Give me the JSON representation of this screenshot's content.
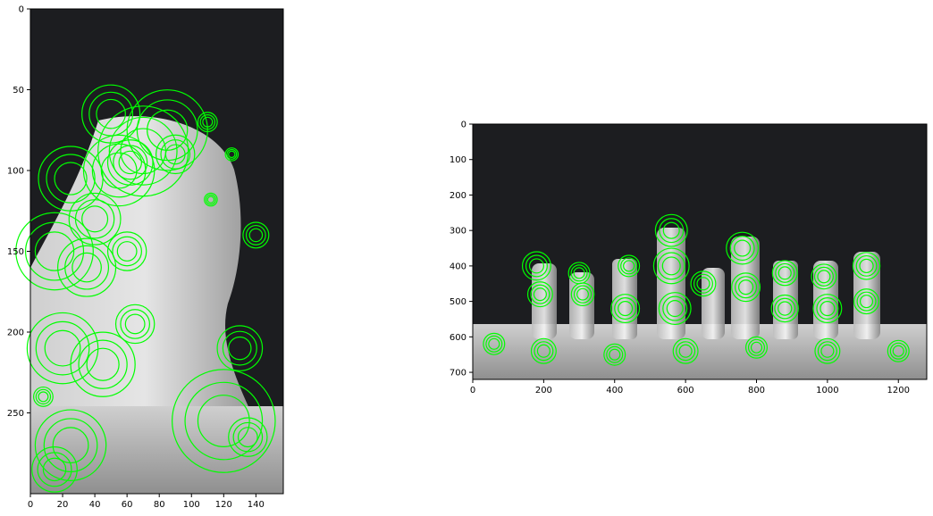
{
  "chart_data": [
    {
      "type": "image",
      "panel": "left",
      "description_of_content": "keypoints",
      "xlim": [
        0,
        157
      ],
      "ylim": [
        300,
        0
      ],
      "x_ticks": [
        0,
        20,
        40,
        60,
        80,
        100,
        120,
        140
      ],
      "y_ticks": [
        0,
        50,
        100,
        150,
        200,
        250
      ],
      "keypoint_color": "#00ff00",
      "background_color": "#1c1d20",
      "keypoints": [
        {
          "x": 55,
          "y": 100,
          "r": 22
        },
        {
          "x": 70,
          "y": 88,
          "r": 28
        },
        {
          "x": 85,
          "y": 75,
          "r": 25
        },
        {
          "x": 50,
          "y": 65,
          "r": 18
        },
        {
          "x": 62,
          "y": 95,
          "r": 14
        },
        {
          "x": 90,
          "y": 90,
          "r": 12
        },
        {
          "x": 25,
          "y": 105,
          "r": 20
        },
        {
          "x": 40,
          "y": 130,
          "r": 16
        },
        {
          "x": 15,
          "y": 150,
          "r": 24
        },
        {
          "x": 35,
          "y": 160,
          "r": 18
        },
        {
          "x": 60,
          "y": 150,
          "r": 12
        },
        {
          "x": 20,
          "y": 210,
          "r": 22
        },
        {
          "x": 45,
          "y": 220,
          "r": 20
        },
        {
          "x": 65,
          "y": 195,
          "r": 12
        },
        {
          "x": 130,
          "y": 210,
          "r": 14
        },
        {
          "x": 120,
          "y": 255,
          "r": 32
        },
        {
          "x": 135,
          "y": 265,
          "r": 12
        },
        {
          "x": 140,
          "y": 140,
          "r": 8
        },
        {
          "x": 25,
          "y": 270,
          "r": 22
        },
        {
          "x": 15,
          "y": 285,
          "r": 14
        },
        {
          "x": 8,
          "y": 240,
          "r": 6
        },
        {
          "x": 110,
          "y": 70,
          "r": 6
        },
        {
          "x": 125,
          "y": 90,
          "r": 4
        },
        {
          "x": 112,
          "y": 118,
          "r": 4
        }
      ]
    },
    {
      "type": "image",
      "panel": "right",
      "description_of_content": "keypoints",
      "xlim": [
        0,
        1280
      ],
      "ylim": [
        720,
        0
      ],
      "x_ticks": [
        0,
        200,
        400,
        600,
        800,
        1000,
        1200
      ],
      "y_ticks": [
        0,
        100,
        200,
        300,
        400,
        500,
        600,
        700
      ],
      "keypoint_color": "#00ff00",
      "background_color": "#1c1d20",
      "keypoints": [
        {
          "x": 180,
          "y": 400,
          "r": 40
        },
        {
          "x": 190,
          "y": 480,
          "r": 35
        },
        {
          "x": 300,
          "y": 420,
          "r": 30
        },
        {
          "x": 310,
          "y": 480,
          "r": 32
        },
        {
          "x": 440,
          "y": 400,
          "r": 30
        },
        {
          "x": 430,
          "y": 520,
          "r": 40
        },
        {
          "x": 560,
          "y": 300,
          "r": 45
        },
        {
          "x": 560,
          "y": 400,
          "r": 50
        },
        {
          "x": 570,
          "y": 520,
          "r": 45
        },
        {
          "x": 650,
          "y": 450,
          "r": 35
        },
        {
          "x": 760,
          "y": 350,
          "r": 45
        },
        {
          "x": 770,
          "y": 460,
          "r": 40
        },
        {
          "x": 880,
          "y": 420,
          "r": 35
        },
        {
          "x": 880,
          "y": 520,
          "r": 38
        },
        {
          "x": 990,
          "y": 430,
          "r": 35
        },
        {
          "x": 1000,
          "y": 520,
          "r": 40
        },
        {
          "x": 1110,
          "y": 400,
          "r": 38
        },
        {
          "x": 1110,
          "y": 500,
          "r": 35
        },
        {
          "x": 60,
          "y": 620,
          "r": 30
        },
        {
          "x": 200,
          "y": 640,
          "r": 35
        },
        {
          "x": 400,
          "y": 650,
          "r": 30
        },
        {
          "x": 600,
          "y": 640,
          "r": 35
        },
        {
          "x": 800,
          "y": 630,
          "r": 30
        },
        {
          "x": 1000,
          "y": 640,
          "r": 35
        },
        {
          "x": 1200,
          "y": 640,
          "r": 30
        }
      ]
    }
  ]
}
